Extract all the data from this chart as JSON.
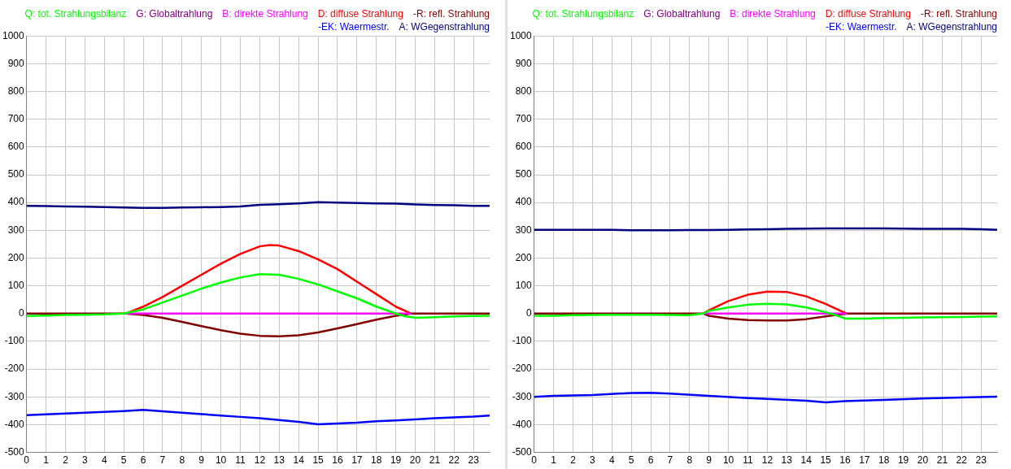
{
  "chart_data": [
    {
      "type": "line",
      "xlim": [
        0,
        23.83
      ],
      "xticks": [
        0,
        1,
        2,
        3,
        4,
        5,
        6,
        7,
        8,
        9,
        10,
        11,
        12,
        13,
        14,
        15,
        16,
        17,
        18,
        19,
        20,
        21,
        22,
        23
      ],
      "ylim": [
        -500,
        1000
      ],
      "yticks": [
        -500,
        -400,
        -300,
        -200,
        -100,
        0,
        100,
        200,
        300,
        400,
        500,
        600,
        700,
        800,
        900,
        1000
      ],
      "grid": true,
      "legend": "top",
      "marker": "none",
      "line_style": "solid",
      "series": [
        {
          "name": "Q: tot. Strahlungsbilanz",
          "color": "#00ff00",
          "x": [
            0,
            1,
            2,
            3,
            4,
            5,
            6,
            7,
            8,
            9,
            10,
            11,
            12,
            13,
            14,
            15,
            16,
            17,
            18,
            19,
            19.5,
            20,
            21,
            22,
            23,
            23.83
          ],
          "values": [
            -9,
            -7,
            -5,
            -4,
            -3,
            0,
            15,
            40,
            65,
            90,
            112,
            130,
            142,
            140,
            125,
            105,
            80,
            55,
            25,
            0,
            -10,
            -15,
            -13,
            -10,
            -9,
            -8
          ]
        },
        {
          "name": "G: Globaltrahlung",
          "color": "#800080"
        },
        {
          "name": "B: direkte Strahlung",
          "color": "#ff00ff",
          "x": [
            5.1,
            19.8
          ],
          "values": [
            0,
            0
          ]
        },
        {
          "name": "D: diffuse Strahlung",
          "color": "#ff0000",
          "x": [
            5.1,
            6,
            7,
            8,
            9,
            10,
            11,
            12,
            12.5,
            13,
            14,
            15,
            16,
            17,
            18,
            19,
            19.8
          ],
          "values": [
            0,
            25,
            60,
            100,
            140,
            180,
            215,
            242,
            247,
            245,
            225,
            195,
            160,
            115,
            70,
            25,
            0
          ]
        },
        {
          "name": "-R: refl. Strahlung",
          "color": "#800000",
          "x": [
            0,
            5.1,
            6,
            7,
            8,
            9,
            10,
            11,
            12,
            13,
            14,
            15,
            16,
            17,
            18,
            19,
            19.8,
            23.83
          ],
          "values": [
            0,
            0,
            -5,
            -15,
            -30,
            -45,
            -60,
            -72,
            -80,
            -82,
            -78,
            -68,
            -53,
            -38,
            -22,
            -8,
            0,
            0
          ]
        },
        {
          "name": "-EK: Waermestr.",
          "color": "#0000ff",
          "x": [
            0,
            1,
            2,
            3,
            4,
            5,
            6,
            7,
            8,
            9,
            10,
            11,
            12,
            13,
            14,
            15,
            16,
            17,
            18,
            19,
            20,
            21,
            22,
            23,
            23.83
          ],
          "values": [
            -366,
            -363,
            -360,
            -357,
            -354,
            -351,
            -347,
            -352,
            -357,
            -362,
            -367,
            -372,
            -377,
            -383,
            -390,
            -399,
            -396,
            -393,
            -388,
            -385,
            -381,
            -377,
            -374,
            -371,
            -367
          ]
        },
        {
          "name": "A: WGegenstrahlung",
          "color": "#000080",
          "x": [
            0,
            1,
            2,
            3,
            4,
            5,
            6,
            7,
            8,
            9,
            10,
            11,
            12,
            13,
            14,
            15,
            16,
            17,
            18,
            19,
            20,
            21,
            22,
            23,
            23.83
          ],
          "values": [
            388,
            387,
            386,
            385,
            384,
            382,
            381,
            381,
            382,
            383,
            384,
            386,
            392,
            394,
            397,
            401,
            400,
            398,
            397,
            396,
            393,
            391,
            390,
            388,
            388
          ]
        }
      ]
    },
    {
      "type": "line",
      "xlim": [
        0,
        23.83
      ],
      "xticks": [
        0,
        1,
        2,
        3,
        4,
        5,
        6,
        7,
        8,
        9,
        10,
        11,
        12,
        13,
        14,
        15,
        16,
        17,
        18,
        19,
        20,
        21,
        22,
        23
      ],
      "ylim": [
        -500,
        1000
      ],
      "yticks": [
        -500,
        -400,
        -300,
        -200,
        -100,
        0,
        100,
        200,
        300,
        400,
        500,
        600,
        700,
        800,
        900,
        1000
      ],
      "grid": true,
      "legend": "top",
      "marker": "none",
      "line_style": "solid",
      "series": [
        {
          "name": "Q: tot. Strahlungsbilanz",
          "color": "#00ff00",
          "x": [
            0,
            1,
            2,
            3,
            4,
            5,
            6,
            7,
            8,
            8.7,
            9,
            10,
            11,
            12,
            13,
            14,
            15,
            15.5,
            16,
            17,
            18,
            19,
            20,
            21,
            22,
            23,
            23.83
          ],
          "values": [
            -8,
            -8,
            -6,
            -5,
            -4,
            -4,
            -4,
            -5,
            -6,
            0,
            10,
            22,
            32,
            35,
            33,
            22,
            5,
            -5,
            -18,
            -18,
            -16,
            -15,
            -14,
            -13,
            -12,
            -11,
            -10
          ]
        },
        {
          "name": "G: Globaltrahlung",
          "color": "#800080"
        },
        {
          "name": "B: direkte Strahlung",
          "color": "#ff00ff",
          "x": [
            8.7,
            16.1
          ],
          "values": [
            0,
            0
          ]
        },
        {
          "name": "D: diffuse Strahlung",
          "color": "#ff0000",
          "x": [
            8.7,
            9,
            10,
            11,
            12,
            13,
            14,
            15,
            16,
            16.1
          ],
          "values": [
            0,
            12,
            45,
            68,
            79,
            78,
            62,
            35,
            3,
            0
          ]
        },
        {
          "name": "-R: refl. Strahlung",
          "color": "#800000",
          "x": [
            0,
            8.7,
            9,
            10,
            11,
            12,
            13,
            14,
            15,
            16,
            16.1,
            23.83
          ],
          "values": [
            0,
            0,
            -8,
            -18,
            -23,
            -25,
            -25,
            -20,
            -10,
            -1,
            0,
            0
          ]
        },
        {
          "name": "-EK: Waermestr.",
          "color": "#0000ff",
          "x": [
            0,
            1,
            3,
            5,
            6,
            7,
            9,
            11,
            12,
            14,
            15,
            16,
            18,
            20,
            22,
            23.83
          ],
          "values": [
            -300,
            -296,
            -293,
            -286,
            -285,
            -288,
            -296,
            -304,
            -307,
            -314,
            -320,
            -315,
            -311,
            -306,
            -302,
            -299
          ]
        },
        {
          "name": "A: WGegenstrahlung",
          "color": "#000080",
          "x": [
            0,
            1,
            2,
            3,
            4,
            5,
            6,
            7,
            8,
            9,
            10,
            11,
            12,
            13,
            14,
            15,
            16,
            17,
            18,
            19,
            20,
            21,
            22,
            23,
            23.83
          ],
          "values": [
            302,
            302,
            302,
            302,
            302,
            300,
            300,
            300,
            301,
            301,
            302,
            303,
            304,
            305,
            306,
            307,
            307,
            307,
            307,
            306,
            305,
            305,
            305,
            304,
            302
          ]
        }
      ]
    }
  ]
}
